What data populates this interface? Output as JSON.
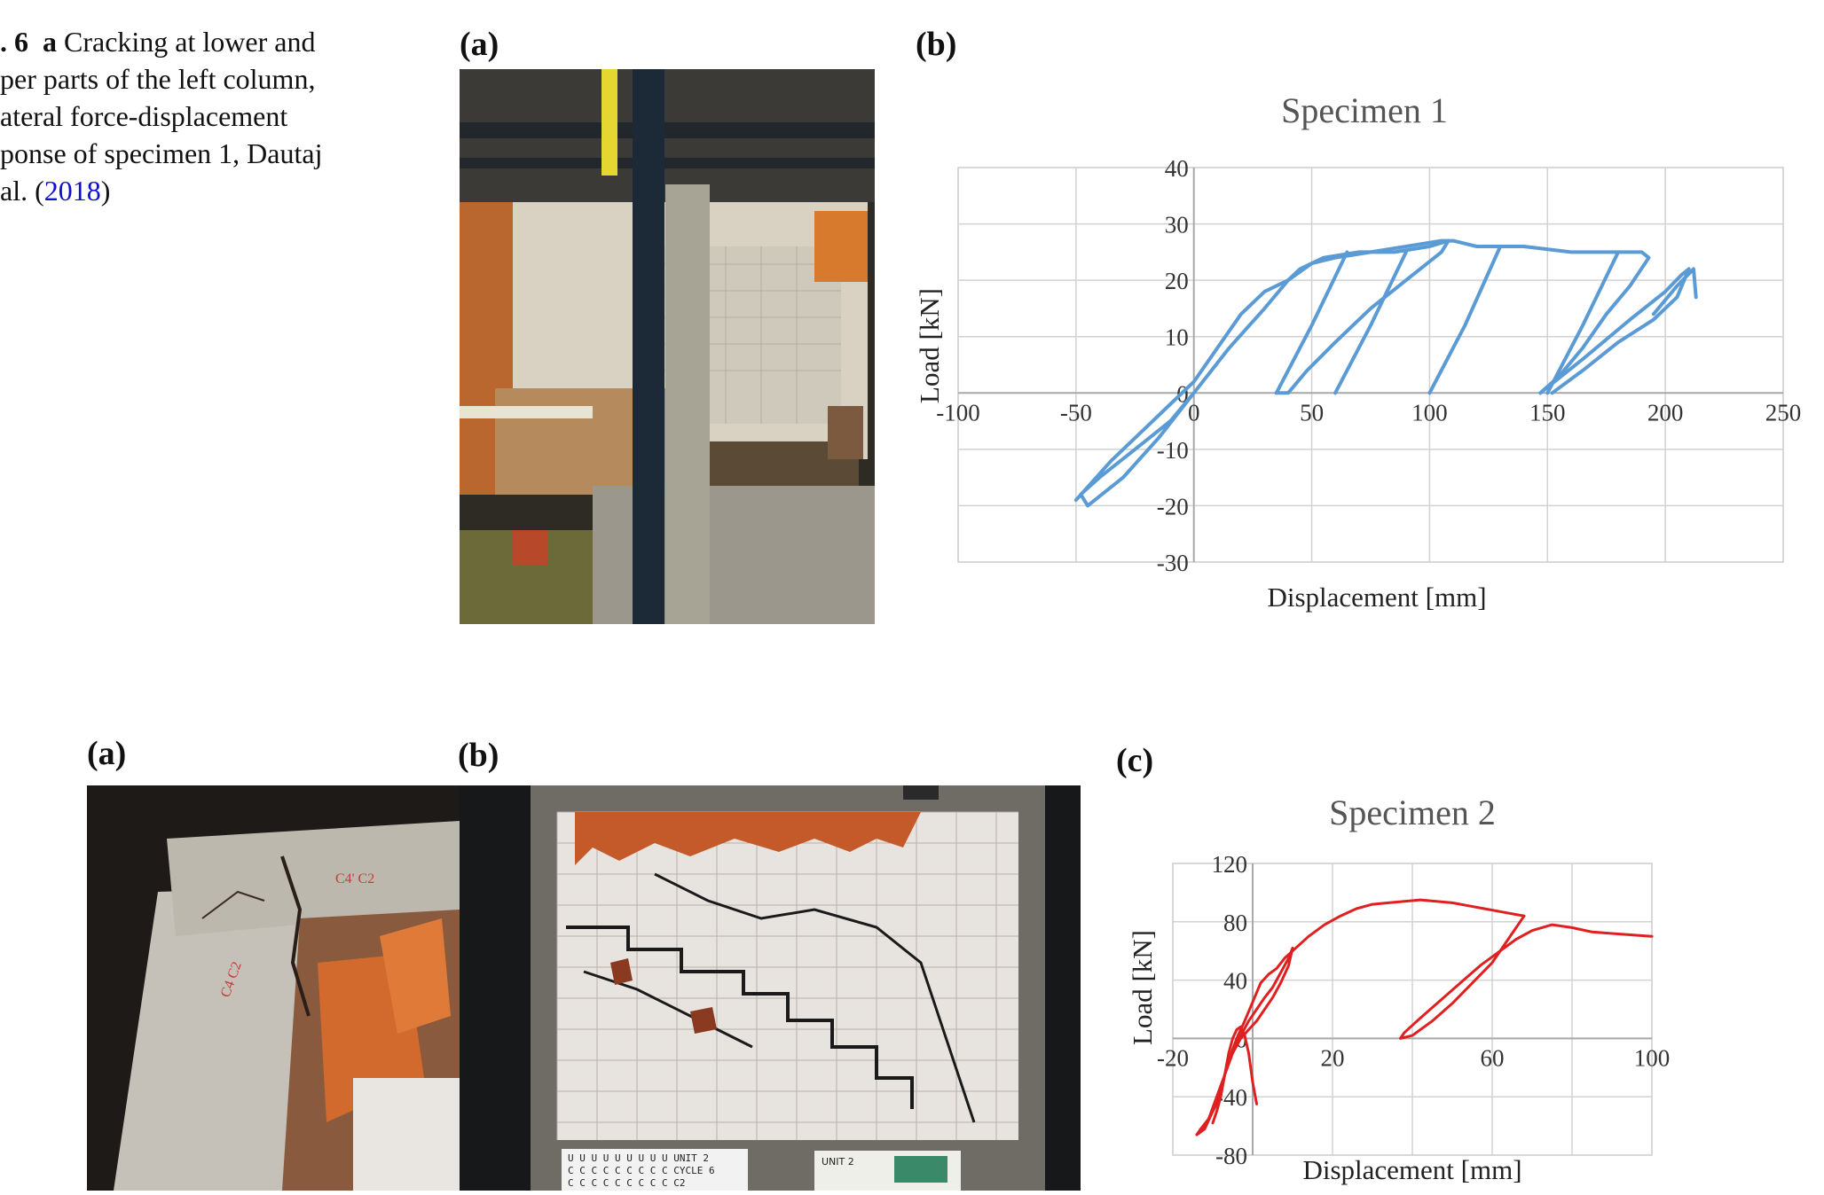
{
  "caption": {
    "fig_no": ". 6",
    "sub_a": "a",
    "text_1": " Cracking at lower and",
    "line_2": "per parts of the left column,",
    "line_3": "ateral force-displacement",
    "line_4": "ponse of specimen 1, Dautaj",
    "line_5_pre": "al. (",
    "cite_year": "2018",
    "line_5_post": ")"
  },
  "labels": {
    "top_a": "(a)",
    "top_b": "(b)",
    "bottom_a": "(a)",
    "bottom_b": "(b)",
    "bottom_c": "(c)"
  },
  "photo_placard": {
    "line_1": "U U U U U U U U U  UNIT 2",
    "line_2": "C C C C C C C C C  CYCLE 6",
    "line_3": "C C C C C C C C C  C2",
    "board": "UNIT 2",
    "col_marks_1": "C4' C2",
    "col_marks_2": "C4 C2"
  },
  "chart_data": [
    {
      "type": "line",
      "title": "Specimen 1",
      "xlabel": "Displacement [mm]",
      "ylabel": "Load [kN]",
      "xlim": [
        -100,
        250
      ],
      "ylim": [
        -30,
        40
      ],
      "xticks": [
        -100,
        -50,
        0,
        50,
        100,
        150,
        200,
        250
      ],
      "yticks": [
        -30,
        -20,
        -10,
        0,
        10,
        20,
        30,
        40
      ],
      "grid": true,
      "color": "#5b9bd5",
      "series": [
        {
          "x": [
            0,
            -10,
            -25,
            -40,
            -48,
            -45,
            -30,
            -15,
            0,
            15,
            30,
            40,
            45,
            55,
            70,
            85,
            100,
            108,
            105,
            90,
            75,
            60,
            48,
            40,
            35
          ],
          "y": [
            0,
            -5,
            -10,
            -15,
            -18,
            -20,
            -15,
            -8,
            0,
            8,
            15,
            20,
            22,
            24,
            25,
            25,
            26,
            27,
            25,
            20,
            15,
            9,
            4,
            0,
            0
          ]
        },
        {
          "x": [
            35,
            50,
            65
          ],
          "y": [
            0,
            12,
            25
          ]
        },
        {
          "x": [
            60,
            75,
            90
          ],
          "y": [
            0,
            12,
            25
          ]
        },
        {
          "x": [
            100,
            115,
            130
          ],
          "y": [
            0,
            12,
            26
          ]
        },
        {
          "x": [
            150,
            165,
            180
          ],
          "y": [
            0,
            12,
            25
          ]
        },
        {
          "x": [
            -50,
            -35,
            -20,
            -10,
            0,
            10,
            20,
            30,
            40,
            50,
            60,
            75,
            90,
            105,
            110,
            120,
            140,
            160,
            175,
            190,
            193,
            185,
            175,
            165,
            155,
            147
          ],
          "y": [
            -19,
            -12,
            -6,
            -2,
            2,
            8,
            14,
            18,
            20,
            23,
            24,
            25,
            26,
            27,
            27,
            26,
            26,
            25,
            25,
            25,
            24,
            19,
            14,
            8,
            3,
            0
          ]
        },
        {
          "x": [
            147,
            165,
            185,
            200,
            207,
            210,
            205,
            195,
            180,
            165,
            152
          ],
          "y": [
            0,
            6,
            13,
            18,
            21,
            22,
            17,
            13,
            9,
            4,
            0
          ]
        },
        {
          "x": [
            195,
            205,
            212,
            213
          ],
          "y": [
            14,
            19,
            22,
            17
          ]
        }
      ]
    },
    {
      "type": "line",
      "title": "Specimen 2",
      "xlabel": "Displacement [mm]",
      "ylabel": "Load [kN]",
      "xlim": [
        -20,
        100
      ],
      "ylim": [
        -80,
        120
      ],
      "xticks": [
        -20,
        20,
        60,
        100
      ],
      "xticks_grid": [
        -20,
        0,
        20,
        40,
        60,
        80,
        100
      ],
      "yticks": [
        -80,
        -40,
        0,
        40,
        80,
        120
      ],
      "grid": true,
      "color": "#e02020",
      "series": [
        {
          "x": [
            -14,
            -12,
            -10,
            -8,
            -6,
            -4,
            -2,
            0,
            2,
            4,
            6,
            8,
            10,
            14,
            18,
            22,
            26,
            30,
            34,
            38,
            42,
            46,
            50,
            54,
            58,
            62,
            66,
            68
          ],
          "y": [
            -66,
            -62,
            -50,
            -35,
            -15,
            0,
            12,
            25,
            38,
            44,
            48,
            55,
            60,
            70,
            78,
            84,
            89,
            92,
            93,
            94,
            95,
            94,
            93,
            91,
            89,
            87,
            85,
            84
          ]
        },
        {
          "x": [
            -14,
            -13,
            -11,
            -9,
            -7,
            -5,
            -3,
            -1,
            1,
            3,
            5,
            7,
            9,
            10,
            9,
            7,
            5,
            3,
            1,
            -1,
            -3,
            -5,
            -7,
            -9,
            -11,
            -13,
            -14
          ],
          "y": [
            -66,
            -64,
            -55,
            -45,
            -25,
            -10,
            2,
            12,
            20,
            28,
            35,
            45,
            55,
            62,
            50,
            38,
            28,
            20,
            12,
            6,
            0,
            -10,
            -25,
            -40,
            -55,
            -62,
            -66
          ]
        },
        {
          "x": [
            -10,
            -9,
            -8,
            -7,
            -6,
            -5,
            -4,
            -3,
            -2,
            -1,
            0,
            1
          ],
          "y": [
            -58,
            -50,
            -40,
            -25,
            -10,
            0,
            6,
            8,
            2,
            -10,
            -30,
            -45
          ]
        },
        {
          "x": [
            68,
            64,
            60,
            55,
            50,
            45,
            40,
            37,
            38,
            42,
            47,
            52,
            57,
            62,
            66,
            70,
            75,
            80,
            85,
            90,
            95,
            100
          ],
          "y": [
            84,
            68,
            52,
            38,
            24,
            12,
            2,
            0,
            4,
            14,
            26,
            38,
            50,
            60,
            68,
            74,
            78,
            76,
            73,
            72,
            71,
            70
          ]
        }
      ]
    }
  ]
}
